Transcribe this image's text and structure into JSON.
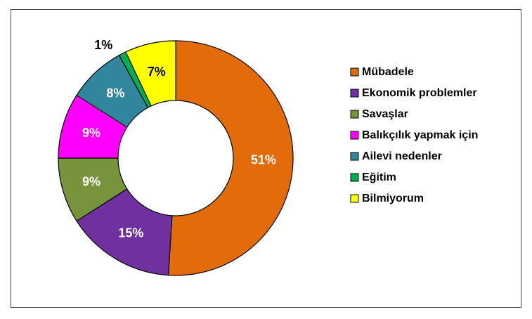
{
  "chart_data": {
    "type": "donut",
    "categories": [
      "Mübadele",
      "Ekonomik problemler",
      "Savaşlar",
      "Balıkçılık yapmak için",
      "Ailevi nedenler",
      "Eğitim",
      "Bilmiyorum"
    ],
    "values": [
      51,
      15,
      9,
      9,
      8,
      1,
      7
    ],
    "value_labels": [
      "51%",
      "15%",
      "9%",
      "9%",
      "8%",
      "1%",
      "7%"
    ],
    "colors": [
      "#E36C0A",
      "#7030A0",
      "#77933C",
      "#FF00FF",
      "#31859C",
      "#00B050",
      "#FFFF00"
    ],
    "legend": "right"
  }
}
